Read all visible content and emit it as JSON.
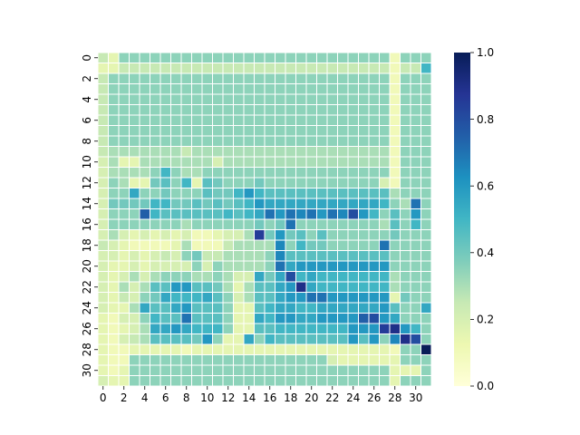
{
  "chart_data": {
    "type": "heatmap",
    "title": "",
    "xlabel": "",
    "ylabel": "",
    "rows": 32,
    "cols": 32,
    "x_tick_labels": [
      "0",
      "2",
      "4",
      "6",
      "8",
      "10",
      "12",
      "14",
      "16",
      "18",
      "20",
      "22",
      "24",
      "26",
      "28",
      "30"
    ],
    "y_tick_labels": [
      "0",
      "2",
      "4",
      "6",
      "8",
      "10",
      "12",
      "14",
      "16",
      "18",
      "20",
      "22",
      "24",
      "26",
      "28",
      "30"
    ],
    "colorbar": {
      "min": 0.0,
      "max": 1.0,
      "tick_labels": [
        "0.0",
        "0.2",
        "0.4",
        "0.6",
        "0.8",
        "1.0"
      ],
      "colormap": "YlGnBu",
      "stops": [
        "#ffffd9",
        "#edf8b1",
        "#c7e9b4",
        "#7fcdbb",
        "#41b6c4",
        "#1d91c0",
        "#225ea8",
        "#253494",
        "#081d58"
      ]
    },
    "cell_border_color": "#ffffff",
    "values": [
      [
        0.25,
        0.15,
        0.35,
        0.35,
        0.35,
        0.35,
        0.35,
        0.35,
        0.35,
        0.35,
        0.35,
        0.35,
        0.35,
        0.35,
        0.35,
        0.35,
        0.35,
        0.35,
        0.35,
        0.35,
        0.35,
        0.35,
        0.35,
        0.35,
        0.35,
        0.35,
        0.35,
        0.35,
        0.1,
        0.35,
        0.35,
        0.35
      ],
      [
        0.15,
        0.15,
        0.25,
        0.25,
        0.25,
        0.25,
        0.25,
        0.25,
        0.25,
        0.25,
        0.25,
        0.25,
        0.25,
        0.25,
        0.25,
        0.25,
        0.25,
        0.25,
        0.25,
        0.25,
        0.25,
        0.25,
        0.25,
        0.25,
        0.25,
        0.25,
        0.25,
        0.25,
        0.1,
        0.25,
        0.25,
        0.5
      ],
      [
        0.25,
        0.35,
        0.35,
        0.35,
        0.35,
        0.35,
        0.35,
        0.35,
        0.35,
        0.35,
        0.35,
        0.35,
        0.35,
        0.35,
        0.35,
        0.35,
        0.35,
        0.35,
        0.35,
        0.35,
        0.35,
        0.35,
        0.35,
        0.35,
        0.35,
        0.35,
        0.35,
        0.35,
        0.1,
        0.35,
        0.35,
        0.35
      ],
      [
        0.25,
        0.35,
        0.35,
        0.35,
        0.35,
        0.35,
        0.35,
        0.35,
        0.35,
        0.35,
        0.35,
        0.35,
        0.35,
        0.35,
        0.35,
        0.35,
        0.35,
        0.35,
        0.35,
        0.35,
        0.35,
        0.35,
        0.35,
        0.35,
        0.35,
        0.35,
        0.35,
        0.35,
        0.1,
        0.35,
        0.35,
        0.35
      ],
      [
        0.25,
        0.35,
        0.35,
        0.35,
        0.35,
        0.35,
        0.35,
        0.35,
        0.35,
        0.35,
        0.35,
        0.35,
        0.35,
        0.35,
        0.35,
        0.35,
        0.35,
        0.35,
        0.35,
        0.35,
        0.35,
        0.35,
        0.35,
        0.35,
        0.35,
        0.35,
        0.35,
        0.35,
        0.1,
        0.35,
        0.35,
        0.35
      ],
      [
        0.25,
        0.35,
        0.35,
        0.35,
        0.35,
        0.35,
        0.35,
        0.35,
        0.35,
        0.35,
        0.35,
        0.35,
        0.35,
        0.35,
        0.35,
        0.35,
        0.35,
        0.35,
        0.35,
        0.35,
        0.35,
        0.35,
        0.35,
        0.35,
        0.35,
        0.35,
        0.35,
        0.35,
        0.1,
        0.35,
        0.35,
        0.35
      ],
      [
        0.25,
        0.35,
        0.35,
        0.35,
        0.35,
        0.35,
        0.35,
        0.35,
        0.35,
        0.35,
        0.35,
        0.35,
        0.35,
        0.35,
        0.35,
        0.35,
        0.35,
        0.35,
        0.35,
        0.35,
        0.35,
        0.35,
        0.35,
        0.35,
        0.35,
        0.35,
        0.35,
        0.35,
        0.1,
        0.35,
        0.35,
        0.35
      ],
      [
        0.25,
        0.35,
        0.35,
        0.35,
        0.35,
        0.35,
        0.35,
        0.35,
        0.35,
        0.35,
        0.35,
        0.35,
        0.35,
        0.35,
        0.35,
        0.35,
        0.35,
        0.35,
        0.35,
        0.35,
        0.35,
        0.35,
        0.35,
        0.35,
        0.35,
        0.35,
        0.35,
        0.35,
        0.1,
        0.35,
        0.35,
        0.35
      ],
      [
        0.25,
        0.35,
        0.35,
        0.35,
        0.35,
        0.35,
        0.35,
        0.35,
        0.35,
        0.35,
        0.35,
        0.35,
        0.35,
        0.35,
        0.35,
        0.35,
        0.35,
        0.35,
        0.35,
        0.35,
        0.35,
        0.35,
        0.35,
        0.35,
        0.35,
        0.35,
        0.35,
        0.35,
        0.1,
        0.35,
        0.35,
        0.35
      ],
      [
        0.25,
        0.3,
        0.3,
        0.3,
        0.3,
        0.3,
        0.3,
        0.3,
        0.25,
        0.3,
        0.3,
        0.3,
        0.3,
        0.3,
        0.3,
        0.3,
        0.3,
        0.3,
        0.3,
        0.3,
        0.3,
        0.3,
        0.3,
        0.3,
        0.3,
        0.3,
        0.3,
        0.3,
        0.1,
        0.35,
        0.35,
        0.35
      ],
      [
        0.2,
        0.3,
        0.15,
        0.15,
        0.3,
        0.3,
        0.3,
        0.3,
        0.3,
        0.3,
        0.3,
        0.2,
        0.3,
        0.3,
        0.3,
        0.3,
        0.3,
        0.3,
        0.3,
        0.3,
        0.3,
        0.3,
        0.3,
        0.3,
        0.3,
        0.3,
        0.3,
        0.3,
        0.1,
        0.35,
        0.35,
        0.35
      ],
      [
        0.2,
        0.3,
        0.3,
        0.3,
        0.3,
        0.35,
        0.5,
        0.35,
        0.3,
        0.3,
        0.35,
        0.35,
        0.35,
        0.35,
        0.35,
        0.35,
        0.35,
        0.35,
        0.35,
        0.35,
        0.35,
        0.35,
        0.35,
        0.35,
        0.35,
        0.35,
        0.35,
        0.35,
        0.1,
        0.35,
        0.35,
        0.35
      ],
      [
        0.2,
        0.35,
        0.3,
        0.15,
        0.15,
        0.4,
        0.45,
        0.35,
        0.5,
        0.15,
        0.45,
        0.4,
        0.35,
        0.35,
        0.35,
        0.4,
        0.35,
        0.35,
        0.35,
        0.35,
        0.35,
        0.35,
        0.35,
        0.35,
        0.35,
        0.35,
        0.35,
        0.2,
        0.1,
        0.35,
        0.35,
        0.35
      ],
      [
        0.2,
        0.35,
        0.35,
        0.55,
        0.35,
        0.35,
        0.4,
        0.35,
        0.35,
        0.35,
        0.45,
        0.4,
        0.4,
        0.5,
        0.6,
        0.5,
        0.45,
        0.45,
        0.45,
        0.45,
        0.45,
        0.45,
        0.45,
        0.45,
        0.45,
        0.45,
        0.45,
        0.45,
        0.3,
        0.35,
        0.35,
        0.35
      ],
      [
        0.2,
        0.4,
        0.4,
        0.4,
        0.4,
        0.5,
        0.5,
        0.4,
        0.4,
        0.45,
        0.4,
        0.45,
        0.4,
        0.45,
        0.5,
        0.6,
        0.55,
        0.55,
        0.55,
        0.55,
        0.55,
        0.55,
        0.55,
        0.55,
        0.55,
        0.55,
        0.55,
        0.5,
        0.35,
        0.3,
        0.7,
        0.35
      ],
      [
        0.2,
        0.35,
        0.35,
        0.35,
        0.75,
        0.5,
        0.45,
        0.45,
        0.45,
        0.45,
        0.45,
        0.45,
        0.5,
        0.45,
        0.5,
        0.55,
        0.7,
        0.6,
        0.7,
        0.65,
        0.7,
        0.6,
        0.7,
        0.65,
        0.8,
        0.6,
        0.5,
        0.35,
        0.45,
        0.35,
        0.6,
        0.35
      ],
      [
        0.2,
        0.35,
        0.35,
        0.35,
        0.35,
        0.35,
        0.35,
        0.35,
        0.3,
        0.35,
        0.35,
        0.35,
        0.35,
        0.35,
        0.35,
        0.4,
        0.35,
        0.4,
        0.7,
        0.35,
        0.35,
        0.35,
        0.35,
        0.35,
        0.35,
        0.35,
        0.35,
        0.3,
        0.45,
        0.35,
        0.5,
        0.35
      ],
      [
        0.2,
        0.3,
        0.2,
        0.15,
        0.2,
        0.15,
        0.2,
        0.15,
        0.2,
        0.1,
        0.1,
        0.15,
        0.2,
        0.2,
        0.3,
        0.85,
        0.4,
        0.6,
        0.4,
        0.45,
        0.35,
        0.45,
        0.35,
        0.35,
        0.35,
        0.35,
        0.35,
        0.35,
        0.4,
        0.35,
        0.35,
        0.35
      ],
      [
        0.25,
        0.2,
        0.15,
        0.1,
        0.1,
        0.1,
        0.1,
        0.15,
        0.3,
        0.1,
        0.1,
        0.1,
        0.25,
        0.3,
        0.3,
        0.3,
        0.3,
        0.65,
        0.35,
        0.5,
        0.4,
        0.4,
        0.35,
        0.35,
        0.35,
        0.35,
        0.35,
        0.7,
        0.35,
        0.35,
        0.35,
        0.35
      ],
      [
        0.2,
        0.2,
        0.15,
        0.2,
        0.15,
        0.2,
        0.25,
        0.2,
        0.35,
        0.4,
        0.25,
        0.25,
        0.3,
        0.3,
        0.3,
        0.3,
        0.35,
        0.65,
        0.45,
        0.45,
        0.45,
        0.45,
        0.45,
        0.45,
        0.45,
        0.45,
        0.45,
        0.45,
        0.35,
        0.35,
        0.35,
        0.35
      ],
      [
        0.2,
        0.15,
        0.15,
        0.2,
        0.15,
        0.2,
        0.2,
        0.2,
        0.2,
        0.35,
        0.2,
        0.35,
        0.3,
        0.3,
        0.3,
        0.3,
        0.35,
        0.7,
        0.55,
        0.6,
        0.6,
        0.6,
        0.6,
        0.6,
        0.6,
        0.6,
        0.6,
        0.6,
        0.35,
        0.35,
        0.35,
        0.35
      ],
      [
        0.2,
        0.15,
        0.2,
        0.3,
        0.2,
        0.3,
        0.35,
        0.35,
        0.35,
        0.3,
        0.3,
        0.35,
        0.3,
        0.2,
        0.2,
        0.55,
        0.4,
        0.55,
        0.8,
        0.5,
        0.55,
        0.5,
        0.5,
        0.5,
        0.5,
        0.5,
        0.5,
        0.5,
        0.3,
        0.35,
        0.35,
        0.35
      ],
      [
        0.2,
        0.15,
        0.3,
        0.2,
        0.3,
        0.45,
        0.45,
        0.6,
        0.6,
        0.45,
        0.45,
        0.4,
        0.3,
        0.15,
        0.3,
        0.45,
        0.45,
        0.55,
        0.6,
        0.9,
        0.55,
        0.5,
        0.5,
        0.5,
        0.5,
        0.5,
        0.5,
        0.5,
        0.3,
        0.35,
        0.35,
        0.35
      ],
      [
        0.2,
        0.15,
        0.25,
        0.2,
        0.35,
        0.4,
        0.55,
        0.5,
        0.5,
        0.5,
        0.55,
        0.45,
        0.35,
        0.2,
        0.3,
        0.45,
        0.45,
        0.55,
        0.6,
        0.6,
        0.7,
        0.7,
        0.6,
        0.6,
        0.6,
        0.6,
        0.6,
        0.6,
        0.15,
        0.4,
        0.35,
        0.35
      ],
      [
        0.2,
        0.15,
        0.15,
        0.3,
        0.55,
        0.45,
        0.45,
        0.55,
        0.6,
        0.45,
        0.45,
        0.45,
        0.35,
        0.15,
        0.15,
        0.45,
        0.5,
        0.55,
        0.55,
        0.5,
        0.5,
        0.55,
        0.55,
        0.55,
        0.55,
        0.55,
        0.55,
        0.6,
        0.45,
        0.35,
        0.35,
        0.55
      ],
      [
        0.15,
        0.1,
        0.2,
        0.2,
        0.35,
        0.5,
        0.45,
        0.45,
        0.7,
        0.45,
        0.45,
        0.45,
        0.35,
        0.15,
        0.15,
        0.55,
        0.5,
        0.6,
        0.6,
        0.55,
        0.55,
        0.6,
        0.6,
        0.6,
        0.6,
        0.75,
        0.8,
        0.6,
        0.55,
        0.35,
        0.35,
        0.35
      ],
      [
        0.15,
        0.1,
        0.15,
        0.2,
        0.3,
        0.55,
        0.55,
        0.6,
        0.55,
        0.5,
        0.5,
        0.5,
        0.35,
        0.15,
        0.15,
        0.45,
        0.45,
        0.5,
        0.5,
        0.5,
        0.5,
        0.5,
        0.5,
        0.5,
        0.6,
        0.6,
        0.6,
        0.85,
        0.9,
        0.6,
        0.5,
        0.35
      ],
      [
        0.15,
        0.1,
        0.2,
        0.25,
        0.3,
        0.45,
        0.45,
        0.45,
        0.45,
        0.4,
        0.6,
        0.35,
        0.15,
        0.15,
        0.55,
        0.35,
        0.5,
        0.45,
        0.45,
        0.45,
        0.45,
        0.45,
        0.45,
        0.45,
        0.6,
        0.45,
        0.6,
        0.35,
        0.65,
        0.9,
        0.8,
        0.35
      ],
      [
        0.15,
        0.1,
        0.1,
        0.15,
        0.15,
        0.15,
        0.15,
        0.15,
        0.1,
        0.15,
        0.15,
        0.15,
        0.15,
        0.15,
        0.15,
        0.15,
        0.15,
        0.15,
        0.15,
        0.15,
        0.15,
        0.15,
        0.15,
        0.15,
        0.15,
        0.15,
        0.15,
        0.15,
        0.1,
        0.35,
        0.35,
        1.0
      ],
      [
        0.15,
        0.1,
        0.1,
        0.35,
        0.35,
        0.35,
        0.35,
        0.35,
        0.35,
        0.35,
        0.35,
        0.35,
        0.35,
        0.35,
        0.35,
        0.35,
        0.35,
        0.35,
        0.35,
        0.35,
        0.35,
        0.35,
        0.2,
        0.15,
        0.15,
        0.15,
        0.15,
        0.15,
        0.15,
        0.35,
        0.35,
        0.35
      ],
      [
        0.15,
        0.1,
        0.15,
        0.35,
        0.35,
        0.35,
        0.35,
        0.35,
        0.35,
        0.35,
        0.35,
        0.35,
        0.35,
        0.35,
        0.35,
        0.35,
        0.35,
        0.35,
        0.35,
        0.35,
        0.35,
        0.35,
        0.35,
        0.35,
        0.35,
        0.35,
        0.35,
        0.35,
        0.15,
        0.15,
        0.15,
        0.35
      ],
      [
        0.2,
        0.15,
        0.15,
        0.35,
        0.35,
        0.35,
        0.35,
        0.35,
        0.35,
        0.35,
        0.35,
        0.35,
        0.35,
        0.35,
        0.35,
        0.35,
        0.35,
        0.35,
        0.35,
        0.35,
        0.35,
        0.35,
        0.35,
        0.35,
        0.35,
        0.35,
        0.35,
        0.35,
        0.15,
        0.35,
        0.35,
        0.35
      ]
    ]
  }
}
